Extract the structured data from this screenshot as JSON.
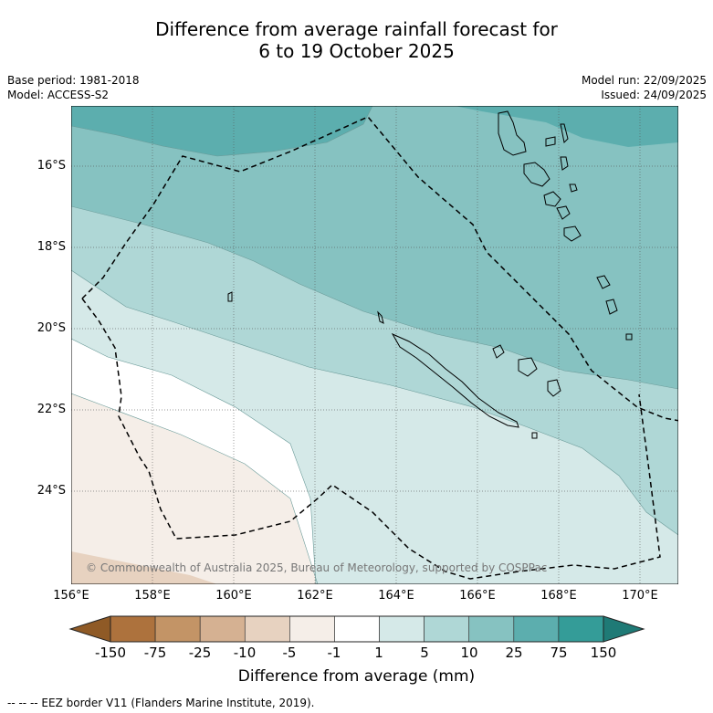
{
  "title": {
    "line1": "Difference from average rainfall forecast for",
    "line2": "6 to 19 October 2025"
  },
  "meta": {
    "base_period": "Base period: 1981-2018",
    "model": "Model: ACCESS-S2",
    "model_run": "Model run: 22/09/2025",
    "issued": "Issued: 24/09/2025"
  },
  "map": {
    "lat_labels": [
      "16°S",
      "18°S",
      "20°S",
      "22°S",
      "24°S"
    ],
    "lon_labels": [
      "156°E",
      "158°E",
      "160°E",
      "162°E",
      "164°E",
      "166°E",
      "168°E",
      "170°E"
    ],
    "copyright": "© Commonwealth of Australia 2025, Bureau of Meteorology, supported by COSPPac"
  },
  "legend": {
    "ticks": [
      "-150",
      "-75",
      "-25",
      "-10",
      "-5",
      "-1",
      "1",
      "5",
      "10",
      "25",
      "75",
      "150"
    ],
    "colors": [
      "#8f5a26",
      "#ad723d",
      "#c39466",
      "#d5b192",
      "#e7d2c0",
      "#f5eee8",
      "#ffffff",
      "#d5e9e8",
      "#afd7d6",
      "#86c2c1",
      "#5caeae",
      "#349c98",
      "#1f7a76"
    ],
    "title": "Difference from average (mm)"
  },
  "footnote": "--  --  -- EEZ border V11 (Flanders Marine Institute, 2019)."
}
